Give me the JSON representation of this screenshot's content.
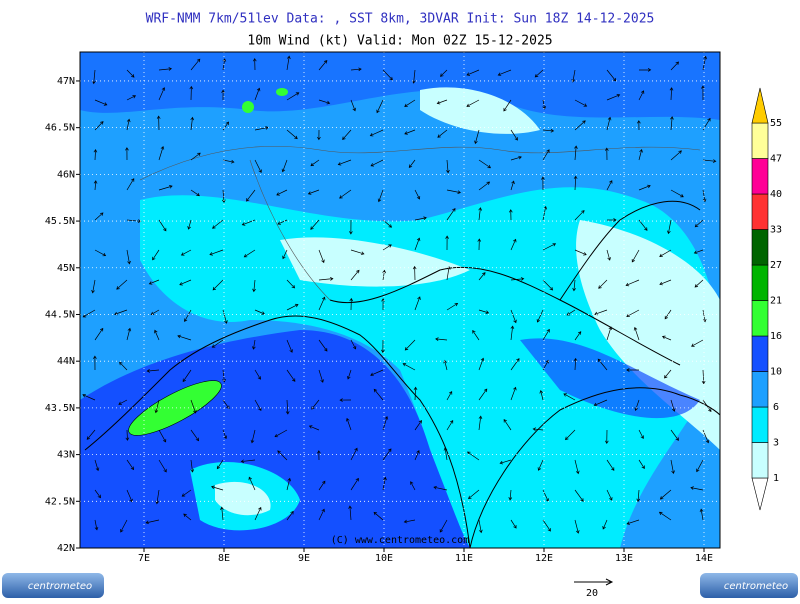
{
  "header": {
    "line1": "WRF-NMM 7km/51lev   Data: , SST 8km, 3DVAR   Init: Sun 18Z 14-12-2025",
    "line2": "10m Wind (kt)   Valid: Mon 02Z 15-12-2025"
  },
  "map": {
    "lonlim": [
      6.2,
      14.2
    ],
    "latlim": [
      42,
      47.31
    ],
    "lonticks": [
      {
        "value": 7,
        "label": "7E"
      },
      {
        "value": 8,
        "label": "8E"
      },
      {
        "value": 9,
        "label": "9E"
      },
      {
        "value": 10,
        "label": "10E"
      },
      {
        "value": 11,
        "label": "11E"
      },
      {
        "value": 12,
        "label": "12E"
      },
      {
        "value": 13,
        "label": "13E"
      },
      {
        "value": 14,
        "label": "14E"
      }
    ],
    "latticks": [
      {
        "value": 42,
        "label": "42N"
      },
      {
        "value": 42.5,
        "label": "42.5N"
      },
      {
        "value": 43,
        "label": "43N"
      },
      {
        "value": 43.5,
        "label": "43.5N"
      },
      {
        "value": 44,
        "label": "44N"
      },
      {
        "value": 44.5,
        "label": "44.5N"
      },
      {
        "value": 45,
        "label": "45N"
      },
      {
        "value": 45.5,
        "label": "45.5N"
      },
      {
        "value": 46,
        "label": "46N"
      },
      {
        "value": 46.5,
        "label": "46.5N"
      },
      {
        "value": 47,
        "label": "47N"
      }
    ],
    "credit": "(C) www.centrometeo.com"
  },
  "colorbar": {
    "levels": [
      1,
      3,
      6,
      10,
      16,
      21,
      27,
      33,
      40,
      47,
      55
    ],
    "colors": [
      "#ffffff",
      "#c8ffff",
      "#00ecff",
      "#1ea0ff",
      "#1450ff",
      "#33ff33",
      "#00b400",
      "#006400",
      "#ff3333",
      "#ff0096",
      "#ffff99",
      "#ffcc00"
    ]
  },
  "reference_vector": {
    "label": 20
  },
  "logos": [
    "centrometeo",
    "centrometeo"
  ]
}
